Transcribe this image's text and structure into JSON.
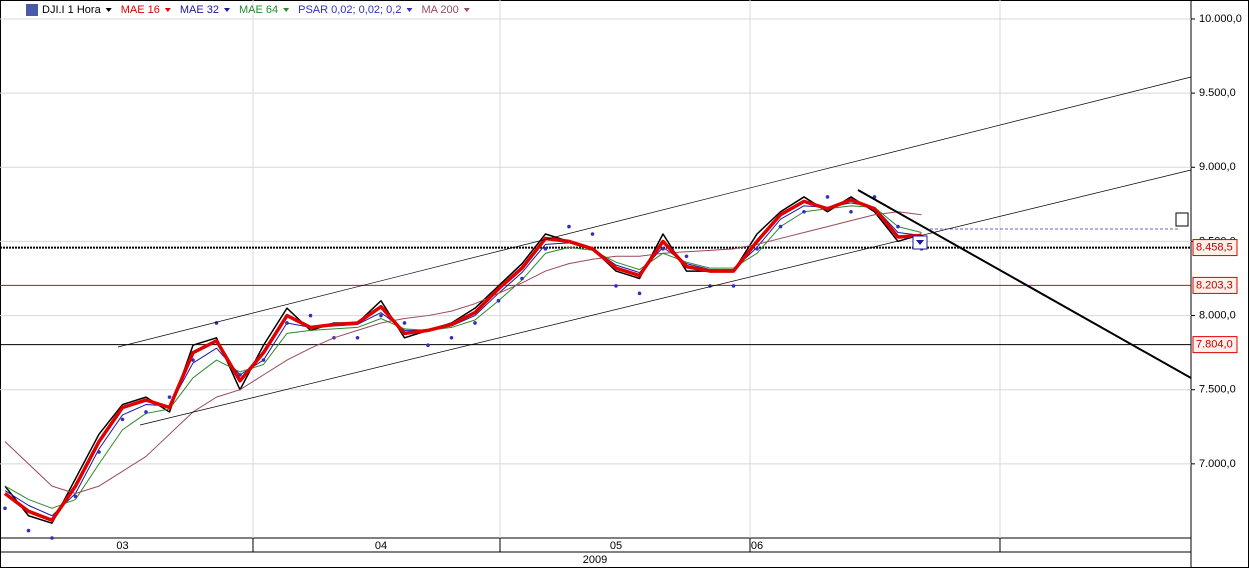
{
  "chart_data": {
    "type": "line",
    "legend": [
      "DJI.I 1 Hora",
      "MAE 16",
      "MAE 32",
      "MAE 64",
      "PSAR 0,02; 0,02; 0,2",
      "MA 200"
    ],
    "categories": [
      null,
      null,
      null,
      null,
      null,
      "03",
      null,
      null,
      null,
      null,
      null,
      null,
      null,
      null,
      null,
      null,
      "04",
      null,
      null,
      null,
      null,
      null,
      null,
      null,
      null,
      null,
      "05",
      null,
      null,
      null,
      null,
      null,
      "06",
      null,
      null,
      null,
      null,
      null,
      null,
      null
    ],
    "year": "2009",
    "series": [
      {
        "name": "DJI.I 1 Hora",
        "color": "#000000",
        "width": 1.5,
        "values": [
          6850,
          6650,
          6600,
          6900,
          7200,
          7400,
          7450,
          7350,
          7800,
          7850,
          7500,
          7800,
          8050,
          7900,
          7950,
          7950,
          8100,
          7850,
          7900,
          7950,
          8050,
          8200,
          8350,
          8550,
          8500,
          8450,
          8300,
          8250,
          8550,
          8300,
          8300,
          8300,
          8550,
          8700,
          8800,
          8700,
          8800,
          8700,
          8500,
          8550
        ]
      },
      {
        "name": "MAE 16",
        "color": "#e00000",
        "width": 3.5,
        "values": [
          6800,
          6680,
          6620,
          6850,
          7150,
          7380,
          7430,
          7380,
          7750,
          7830,
          7560,
          7750,
          8000,
          7920,
          7940,
          7950,
          8060,
          7880,
          7900,
          7940,
          8020,
          8180,
          8320,
          8520,
          8500,
          8450,
          8320,
          8270,
          8500,
          8330,
          8300,
          8300,
          8500,
          8680,
          8770,
          8720,
          8780,
          8720,
          8530,
          8540
        ]
      },
      {
        "name": "MAE 32",
        "color": "#1a1aa0",
        "width": 1,
        "values": [
          6820,
          6720,
          6650,
          6800,
          7100,
          7330,
          7400,
          7390,
          7680,
          7780,
          7600,
          7700,
          7950,
          7920,
          7930,
          7940,
          8020,
          7900,
          7900,
          7930,
          8000,
          8150,
          8290,
          8480,
          8490,
          8450,
          8340,
          8290,
          8460,
          8350,
          8310,
          8310,
          8460,
          8650,
          8740,
          8730,
          8760,
          8730,
          8560,
          8540
        ]
      },
      {
        "name": "MAE 64",
        "color": "#2a8a2a",
        "width": 1,
        "values": [
          6850,
          6760,
          6700,
          6760,
          7000,
          7230,
          7340,
          7370,
          7580,
          7700,
          7620,
          7670,
          7880,
          7900,
          7910,
          7920,
          7980,
          7910,
          7900,
          7920,
          7970,
          8100,
          8240,
          8420,
          8460,
          8440,
          8360,
          8310,
          8420,
          8360,
          8320,
          8320,
          8420,
          8600,
          8700,
          8720,
          8740,
          8730,
          8600,
          8560
        ]
      },
      {
        "name": "PSAR 0,02; 0,02; 0,2",
        "color": "#3030c0",
        "width": 0,
        "values": [
          6700,
          6550,
          6500,
          6780,
          7080,
          7300,
          7350,
          7450,
          7700,
          7950,
          7600,
          7700,
          7950,
          8000,
          7850,
          7850,
          8000,
          7950,
          7800,
          7850,
          7950,
          8100,
          8250,
          8450,
          8600,
          8550,
          8200,
          8150,
          8450,
          8400,
          8200,
          8200,
          8450,
          8600,
          8700,
          8800,
          8700,
          8800,
          8600,
          8450
        ]
      },
      {
        "name": "MA 200",
        "color": "#9a4a5a",
        "width": 1,
        "values": [
          7150,
          7000,
          6850,
          6800,
          6850,
          6950,
          7050,
          7200,
          7350,
          7450,
          7500,
          7600,
          7700,
          7780,
          7850,
          7900,
          7950,
          7980,
          8000,
          8030,
          8080,
          8150,
          8220,
          8300,
          8350,
          8380,
          8400,
          8400,
          8420,
          8430,
          8440,
          8450,
          8480,
          8520,
          8560,
          8600,
          8640,
          8680,
          8700,
          8680
        ]
      }
    ],
    "levels": [
      {
        "value": 8458.5,
        "label": "8.458,5"
      },
      {
        "value": 8203.3,
        "label": "8.203,3"
      },
      {
        "value": 7804.0,
        "label": "7.804,0"
      }
    ],
    "ylim": [
      6500,
      10128
    ],
    "yticks": [
      {
        "value": 7000,
        "label": "7.000,0"
      },
      {
        "value": 7500,
        "label": "7.500,0"
      },
      {
        "value": 8000,
        "label": "8.000,0"
      },
      {
        "value": 8500,
        "label": "8.500,0"
      },
      {
        "value": 9000,
        "label": "9.000,0"
      },
      {
        "value": 9500,
        "label": "9.500,0"
      },
      {
        "value": 10000,
        "label": "10.000,0"
      }
    ],
    "grid": true
  }
}
